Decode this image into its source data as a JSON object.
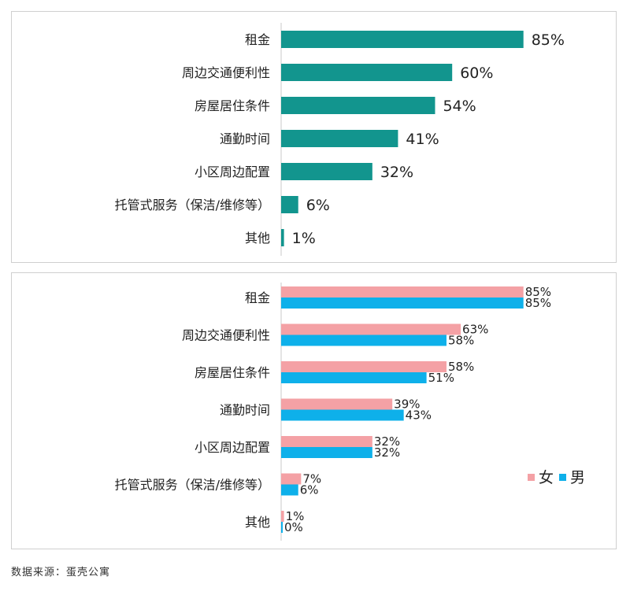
{
  "colors": {
    "single": "#12958e",
    "female": "#f4a1a5",
    "male": "#0eb0ea",
    "axis": "#c8c8c8"
  },
  "chart_data": [
    {
      "type": "bar",
      "orientation": "horizontal",
      "categories": [
        "租金",
        "周边交通便利性",
        "房屋居住条件",
        "通勤时间",
        "小区周边配置",
        "托管式服务（保洁/维修等）",
        "其他"
      ],
      "values": [
        85,
        60,
        54,
        41,
        32,
        6,
        1
      ],
      "value_labels": [
        "85%",
        "60%",
        "54%",
        "41%",
        "32%",
        "6%",
        "1%"
      ],
      "xlim": [
        0,
        100
      ],
      "grid": false
    },
    {
      "type": "bar",
      "orientation": "horizontal",
      "categories": [
        "租金",
        "周边交通便利性",
        "房屋居住条件",
        "通勤时间",
        "小区周边配置",
        "托管式服务（保洁/维修等）",
        "其他"
      ],
      "series": [
        {
          "name": "女",
          "values": [
            85,
            63,
            58,
            39,
            32,
            7,
            1
          ],
          "value_labels": [
            "85%",
            "63%",
            "58%",
            "39%",
            "32%",
            "7%",
            "1%"
          ]
        },
        {
          "name": "男",
          "values": [
            85,
            58,
            51,
            43,
            32,
            6,
            0
          ],
          "value_labels": [
            "85%",
            "58%",
            "51%",
            "43%",
            "32%",
            "6%",
            "0%"
          ]
        }
      ],
      "xlim": [
        0,
        100
      ],
      "legend_position": "right",
      "grid": false
    }
  ],
  "source": "数据来源：蛋壳公寓"
}
